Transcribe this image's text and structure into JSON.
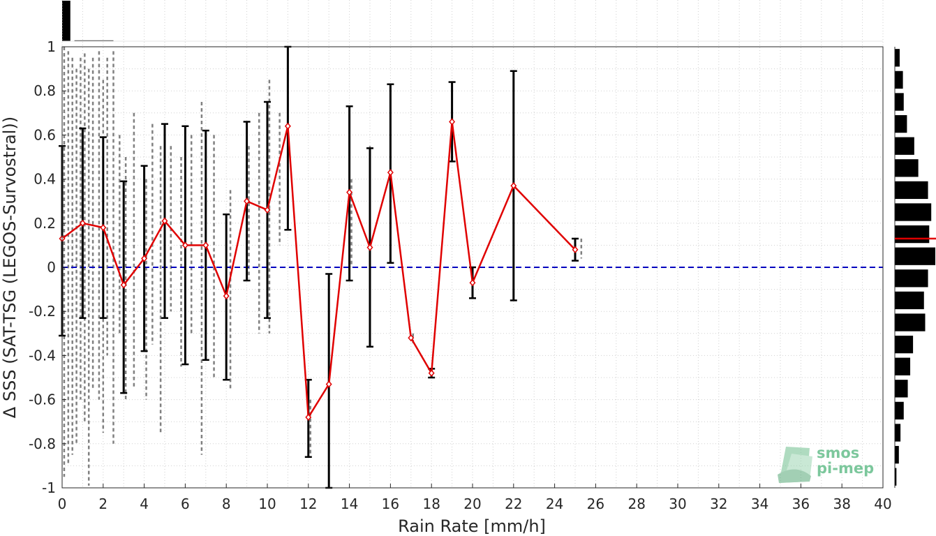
{
  "chart_data": {
    "type": "scatter",
    "xlabel": "Rain Rate [mm/h]",
    "ylabel": "Δ SSS (SAT-TSG (LEGOS-Survostral))",
    "xlim": [
      0,
      40
    ],
    "ylim": [
      -1,
      1
    ],
    "xticks": [
      "0",
      "2",
      "4",
      "6",
      "8",
      "10",
      "12",
      "14",
      "16",
      "18",
      "20",
      "22",
      "24",
      "26",
      "28",
      "30",
      "32",
      "34",
      "36",
      "38",
      "40"
    ],
    "yticks": [
      "1",
      "0.8",
      "0.6",
      "0.4",
      "0.2",
      "0",
      "-0.2",
      "-0.4",
      "-0.6",
      "-0.8",
      "-1"
    ],
    "grid": true,
    "reference_line": {
      "y": 0,
      "style": "dashed",
      "color": "#0000bf"
    },
    "series": [
      {
        "role": "binned mean with error bars",
        "color": "#e00000",
        "points": [
          {
            "x": 0,
            "y": 0.13,
            "low": -0.31,
            "high": 0.55
          },
          {
            "x": 1,
            "y": 0.2,
            "low": -0.23,
            "high": 0.63
          },
          {
            "x": 2,
            "y": 0.18,
            "low": -0.23,
            "high": 0.59
          },
          {
            "x": 3,
            "y": -0.08,
            "low": -0.57,
            "high": 0.39
          },
          {
            "x": 4,
            "y": 0.04,
            "low": -0.38,
            "high": 0.46
          },
          {
            "x": 5,
            "y": 0.21,
            "low": -0.23,
            "high": 0.65
          },
          {
            "x": 6,
            "y": 0.1,
            "low": -0.44,
            "high": 0.64
          },
          {
            "x": 7,
            "y": 0.1,
            "low": -0.42,
            "high": 0.62
          },
          {
            "x": 8,
            "y": -0.13,
            "low": -0.51,
            "high": 0.24
          },
          {
            "x": 9,
            "y": 0.3,
            "low": -0.06,
            "high": 0.66
          },
          {
            "x": 10,
            "y": 0.26,
            "low": -0.23,
            "high": 0.75
          },
          {
            "x": 11,
            "y": 0.64,
            "low": 0.17,
            "high": 1.0
          },
          {
            "x": 12,
            "y": -0.68,
            "low": -0.86,
            "high": -0.51
          },
          {
            "x": 13,
            "y": -0.53,
            "low": -1.0,
            "high": -0.03
          },
          {
            "x": 14,
            "y": 0.34,
            "low": -0.06,
            "high": 0.73
          },
          {
            "x": 15,
            "y": 0.09,
            "low": -0.36,
            "high": 0.54
          },
          {
            "x": 16,
            "y": 0.43,
            "low": 0.02,
            "high": 0.83
          },
          {
            "x": 17,
            "y": -0.32,
            "low": -0.32,
            "high": -0.32
          },
          {
            "x": 18,
            "y": -0.48,
            "low": -0.5,
            "high": -0.46
          },
          {
            "x": 19,
            "y": 0.66,
            "low": 0.48,
            "high": 0.84
          },
          {
            "x": 20,
            "y": -0.07,
            "low": -0.14,
            "high": 0.0
          },
          {
            "x": 22,
            "y": 0.37,
            "low": -0.15,
            "high": 0.89
          },
          {
            "x": 25,
            "y": 0.08,
            "low": 0.03,
            "high": 0.13
          }
        ]
      }
    ],
    "scatter_color": "#808080",
    "scatter_bands": [
      {
        "x": 0.1,
        "y0": -0.95,
        "y1": 1.0
      },
      {
        "x": 0.3,
        "y0": -0.9,
        "y1": 0.98
      },
      {
        "x": 0.5,
        "y0": -0.85,
        "y1": 0.95
      },
      {
        "x": 0.7,
        "y0": -0.8,
        "y1": 0.9
      },
      {
        "x": 0.9,
        "y0": -0.6,
        "y1": 0.95
      },
      {
        "x": 1.1,
        "y0": -0.7,
        "y1": 0.97
      },
      {
        "x": 1.3,
        "y0": -0.99,
        "y1": 0.9
      },
      {
        "x": 1.5,
        "y0": -0.55,
        "y1": 0.95
      },
      {
        "x": 1.8,
        "y0": -0.6,
        "y1": 0.98
      },
      {
        "x": 2.0,
        "y0": -0.75,
        "y1": 0.85
      },
      {
        "x": 2.2,
        "y0": -0.4,
        "y1": 0.95
      },
      {
        "x": 2.5,
        "y0": -0.8,
        "y1": 0.98
      },
      {
        "x": 2.8,
        "y0": -0.3,
        "y1": 0.6
      },
      {
        "x": 3.1,
        "y0": -0.6,
        "y1": 0.5
      },
      {
        "x": 3.5,
        "y0": -0.55,
        "y1": 0.7
      },
      {
        "x": 4.1,
        "y0": -0.6,
        "y1": 0.4
      },
      {
        "x": 4.4,
        "y0": -0.35,
        "y1": 0.65
      },
      {
        "x": 4.8,
        "y0": -0.75,
        "y1": 0.55
      },
      {
        "x": 5.3,
        "y0": -0.2,
        "y1": 0.55
      },
      {
        "x": 5.8,
        "y0": -0.45,
        "y1": 0.5
      },
      {
        "x": 6.3,
        "y0": -0.3,
        "y1": 0.6
      },
      {
        "x": 6.8,
        "y0": -0.85,
        "y1": 0.75
      },
      {
        "x": 7.4,
        "y0": -0.5,
        "y1": 0.6
      },
      {
        "x": 8.2,
        "y0": -0.55,
        "y1": 0.35
      },
      {
        "x": 9.1,
        "y0": -0.05,
        "y1": 0.55
      },
      {
        "x": 9.6,
        "y0": -0.3,
        "y1": 0.7
      },
      {
        "x": 10.1,
        "y0": -0.3,
        "y1": 0.85
      },
      {
        "x": 10.6,
        "y0": 0.1,
        "y1": 0.7
      },
      {
        "x": 11.0,
        "y0": 0.2,
        "y1": 1.0
      },
      {
        "x": 12.1,
        "y0": -0.85,
        "y1": -0.6
      },
      {
        "x": 14.1,
        "y0": 0.0,
        "y1": 0.4
      },
      {
        "x": 15.0,
        "y0": -0.1,
        "y1": 0.55
      },
      {
        "x": 16.0,
        "y0": 0.1,
        "y1": 0.45
      },
      {
        "x": 17.1,
        "y0": -0.35,
        "y1": -0.3
      },
      {
        "x": 18.0,
        "y0": -0.5,
        "y1": -0.46
      },
      {
        "x": 19.0,
        "y0": 0.52,
        "y1": 0.72
      },
      {
        "x": 20.0,
        "y0": -0.12,
        "y1": -0.02
      },
      {
        "x": 25.3,
        "y0": 0.04,
        "y1": 0.13
      }
    ],
    "top_histogram": {
      "color": "#000000",
      "bins": [
        {
          "x0": 0,
          "x1": 0.4,
          "value": 1.0
        },
        {
          "x0": 0.6,
          "x1": 2.5,
          "value": 0.02
        }
      ]
    },
    "right_histogram": {
      "color": "#000000",
      "mean_marker_color": "#e00000",
      "bins": [
        {
          "y": 0.95,
          "value": 0.12
        },
        {
          "y": 0.85,
          "value": 0.2
        },
        {
          "y": 0.75,
          "value": 0.22
        },
        {
          "y": 0.65,
          "value": 0.3
        },
        {
          "y": 0.55,
          "value": 0.48
        },
        {
          "y": 0.45,
          "value": 0.58
        },
        {
          "y": 0.35,
          "value": 0.82
        },
        {
          "y": 0.25,
          "value": 0.9
        },
        {
          "y": 0.15,
          "value": 0.85
        },
        {
          "y": 0.05,
          "value": 1.0
        },
        {
          "y": -0.05,
          "value": 0.82
        },
        {
          "y": -0.15,
          "value": 0.72
        },
        {
          "y": -0.25,
          "value": 0.75
        },
        {
          "y": -0.35,
          "value": 0.45
        },
        {
          "y": -0.45,
          "value": 0.38
        },
        {
          "y": -0.55,
          "value": 0.32
        },
        {
          "y": -0.65,
          "value": 0.22
        },
        {
          "y": -0.75,
          "value": 0.14
        },
        {
          "y": -0.85,
          "value": 0.1
        },
        {
          "y": -0.95,
          "value": 0.04
        }
      ],
      "mean_y": 0.13
    }
  },
  "logo": {
    "line1": "smos",
    "line2": "pi-mep",
    "color": "#7cc79c"
  }
}
